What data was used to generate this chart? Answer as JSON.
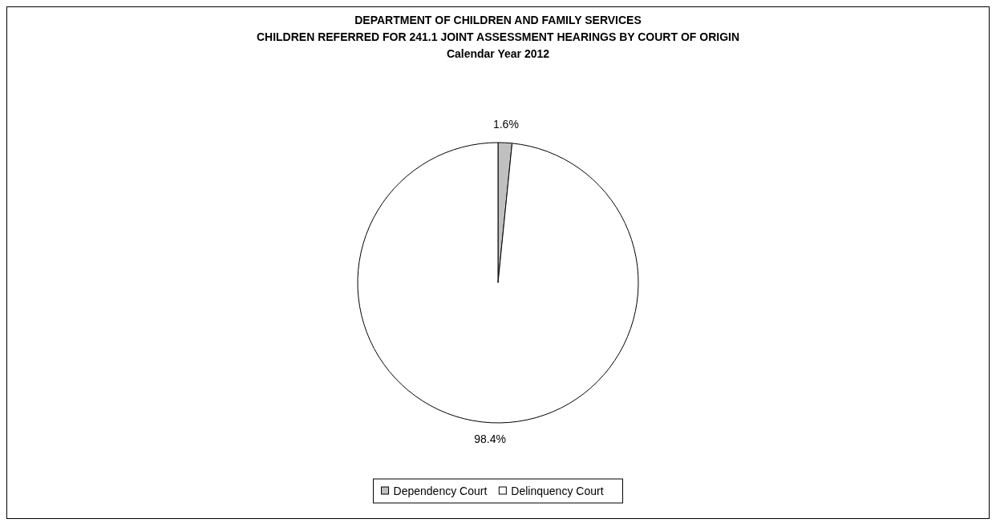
{
  "chart_data": {
    "type": "pie",
    "title": "DEPARTMENT OF CHILDREN AND FAMILY SERVICES\nCHILDREN REFERRED FOR 241.1 JOINT ASSESSMENT HEARINGS BY COURT OF ORIGIN",
    "subtitle": "Calendar Year 2012",
    "categories": [
      "Dependency Court",
      "Delinquency Court"
    ],
    "values": [
      1.6,
      98.4
    ],
    "colors": [
      "#c0c0c0",
      "#ffffff"
    ],
    "value_labels": [
      "1.6%",
      "98.4%"
    ],
    "legend": "bottom"
  }
}
